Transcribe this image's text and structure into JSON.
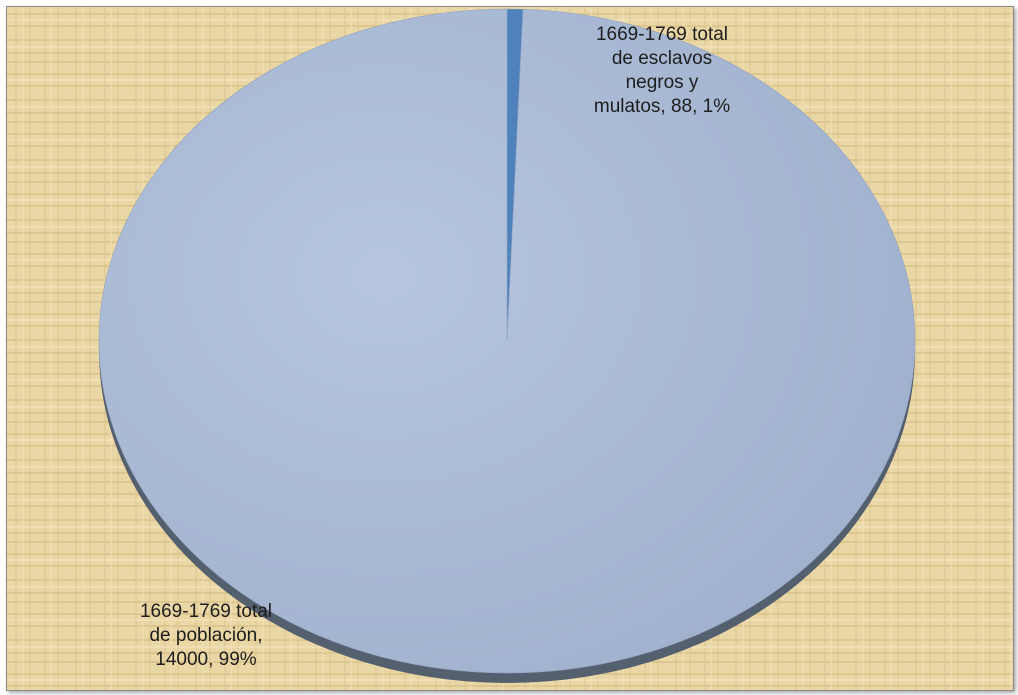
{
  "chart_data": {
    "type": "pie",
    "title": "",
    "style": "3d-tilted",
    "slices": [
      {
        "name": "1669-1769 total de población",
        "value": 14000,
        "percent_label": "99%",
        "label_lines": [
          "1669-1769 total",
          "de población,",
          "14000, 99%"
        ],
        "color": "#a7b9d6"
      },
      {
        "name": "1669-1769 total de esclavos negros y mulatos",
        "value": 88,
        "percent_label": "1%",
        "label_lines": [
          "1669-1769 total",
          "de esclavos",
          "negros  y",
          "mulatos, 88, 1%"
        ],
        "color": "#4f81bd"
      }
    ],
    "background": {
      "texture": "papyrus",
      "color": "#ead7a6"
    },
    "legend": "none",
    "data_labels": "category-value-percent"
  }
}
